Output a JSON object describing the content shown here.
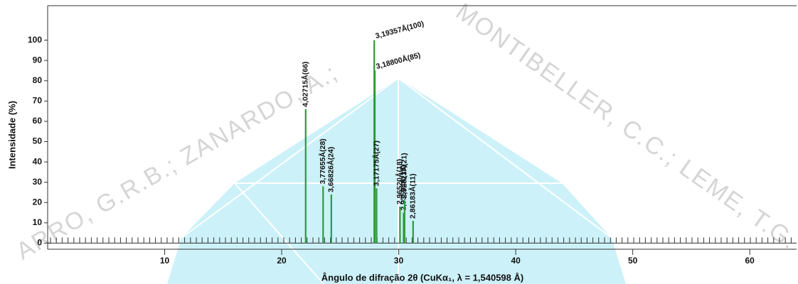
{
  "chart_data": {
    "type": "stick",
    "xlabel": "Ângulo de difração 2θ (CuKα₁, λ = 1,540598 Å)",
    "ylabel": "Intensidade (%)",
    "x": [
      22.05,
      23.54,
      24.24,
      27.91,
      27.96,
      28.11,
      30.11,
      30.42,
      30.5,
      31.23
    ],
    "values": [
      66,
      28,
      24,
      100,
      85,
      27,
      18,
      15,
      21,
      11
    ],
    "value_labels": [
      "4,02715Å(66)",
      "3,77655Å(28)",
      "3,66826Å(24)",
      "3,19357Å(100)",
      "3,18800Å(85)",
      "3,17175Å(27)",
      "2,96520Å(18)",
      "2,93594Å(15)",
      "2,92823Å(21)",
      "2,86183Å(11)"
    ],
    "color": "#2e9a3c",
    "xlim": [
      0,
      64
    ],
    "ylim": [
      -3,
      117
    ],
    "xticks": [
      10,
      20,
      30,
      40,
      50,
      60
    ],
    "yticks": [
      0,
      10,
      20,
      30,
      40,
      50,
      60,
      70,
      80,
      90,
      100
    ],
    "watermark": [
      "ARRO, G.R.B.; ZANARDO, A.;",
      "MONTIBELLER, C.C.; LEME, T.G."
    ]
  }
}
